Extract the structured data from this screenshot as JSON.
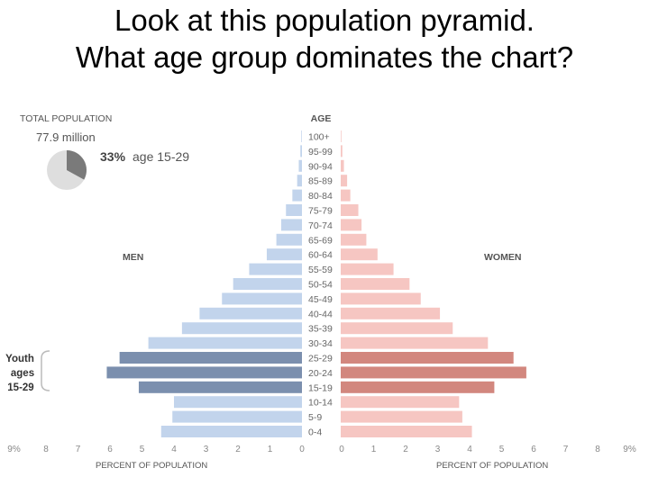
{
  "slide": {
    "title_line1": "Look at this population pyramid.",
    "title_line2": "What age group dominates the chart?"
  },
  "summary": {
    "total_label": "TOTAL POPULATION",
    "total_value": "77.9 million",
    "youth_pct": "33%",
    "youth_label": "age 15-29",
    "youth_share": 0.33
  },
  "callout": {
    "line1": "Youth",
    "line2": "ages",
    "line3": "15-29"
  },
  "colors": {
    "men": "#c2d4ec",
    "men_highlight": "#7b8fae",
    "women": "#f6c6c2",
    "women_highlight": "#d2877e",
    "pie_base": "#dedede",
    "pie_slice": "#7a7a7a"
  },
  "chart_data": {
    "type": "bar",
    "orientation": "horizontal-pyramid",
    "age_header": "AGE",
    "men_label": "MEN",
    "women_label": "WOMEN",
    "xlabel_left": "PERCENT OF POPULATION",
    "xlabel_right": "PERCENT OF POPULATION",
    "xlim": [
      0,
      9
    ],
    "ticks_left": [
      "9%",
      "8",
      "7",
      "6",
      "5",
      "4",
      "3",
      "2",
      "1",
      "0"
    ],
    "ticks_right": [
      "0",
      "1",
      "2",
      "3",
      "4",
      "5",
      "6",
      "7",
      "8",
      "9%"
    ],
    "categories": [
      "100+",
      "95-99",
      "90-94",
      "85-89",
      "80-84",
      "75-79",
      "70-74",
      "65-69",
      "60-64",
      "55-59",
      "50-54",
      "45-49",
      "40-44",
      "35-39",
      "30-34",
      "25-29",
      "20-24",
      "15-19",
      "10-14",
      "5-9",
      "0-4"
    ],
    "highlight": [
      "25-29",
      "20-24",
      "15-19"
    ],
    "series": [
      {
        "name": "MEN",
        "values": [
          0.02,
          0.05,
          0.1,
          0.15,
          0.3,
          0.5,
          0.65,
          0.8,
          1.1,
          1.65,
          2.15,
          2.5,
          3.2,
          3.75,
          4.8,
          5.7,
          6.1,
          5.1,
          4.0,
          4.05,
          4.4
        ]
      },
      {
        "name": "WOMEN",
        "values": [
          0.02,
          0.05,
          0.1,
          0.2,
          0.3,
          0.55,
          0.65,
          0.8,
          1.15,
          1.65,
          2.15,
          2.5,
          3.1,
          3.5,
          4.6,
          5.4,
          5.8,
          4.8,
          3.7,
          3.8,
          4.1
        ]
      }
    ]
  }
}
